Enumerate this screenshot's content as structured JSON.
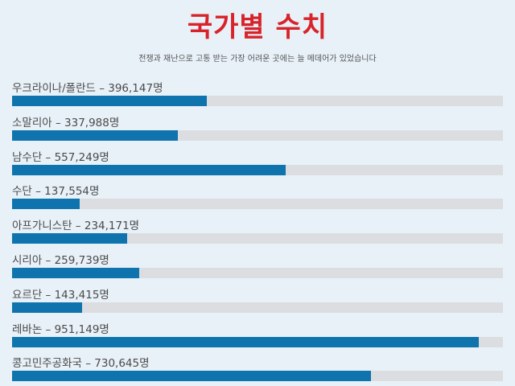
{
  "header": {
    "title": "국가별 수치",
    "subtitle": "전쟁과 재난으로 고통 받는 가장 어려운 곳에는 늘 메데어가 있었습니다"
  },
  "colors": {
    "bar_fill": "#0f73ad",
    "bar_track": "#dcdde0",
    "title": "#d8232a",
    "background": "#e8f1f8"
  },
  "chart_data": {
    "type": "bar",
    "orientation": "horizontal",
    "title": "국가별 수치",
    "subtitle": "전쟁과 재난으로 고통 받는 가장 어려운 곳에는 늘 메데어가 있었습니다",
    "xlim": [
      0,
      1000000
    ],
    "grid": false,
    "categories": [
      "우크라이나/폴란드",
      "소말리아",
      "남수단",
      "수단",
      "아프가니스탄",
      "시리아",
      "요르단",
      "레바논",
      "콩고민주공화국"
    ],
    "values": [
      396147,
      337988,
      557249,
      137554,
      234171,
      259739,
      143415,
      951149,
      730645
    ],
    "labels": [
      "우크라이나/폴란드 – 396,147명",
      "소말리아 – 337,988명",
      "남수단 – 557,249명",
      "수단 – 137,554명",
      "아프가니스탄 – 234,171명",
      "시리아 – 259,739명",
      "요르단 – 143,415명",
      "레바논 – 951,149명",
      "콩고민주공화국 – 730,645명"
    ]
  }
}
